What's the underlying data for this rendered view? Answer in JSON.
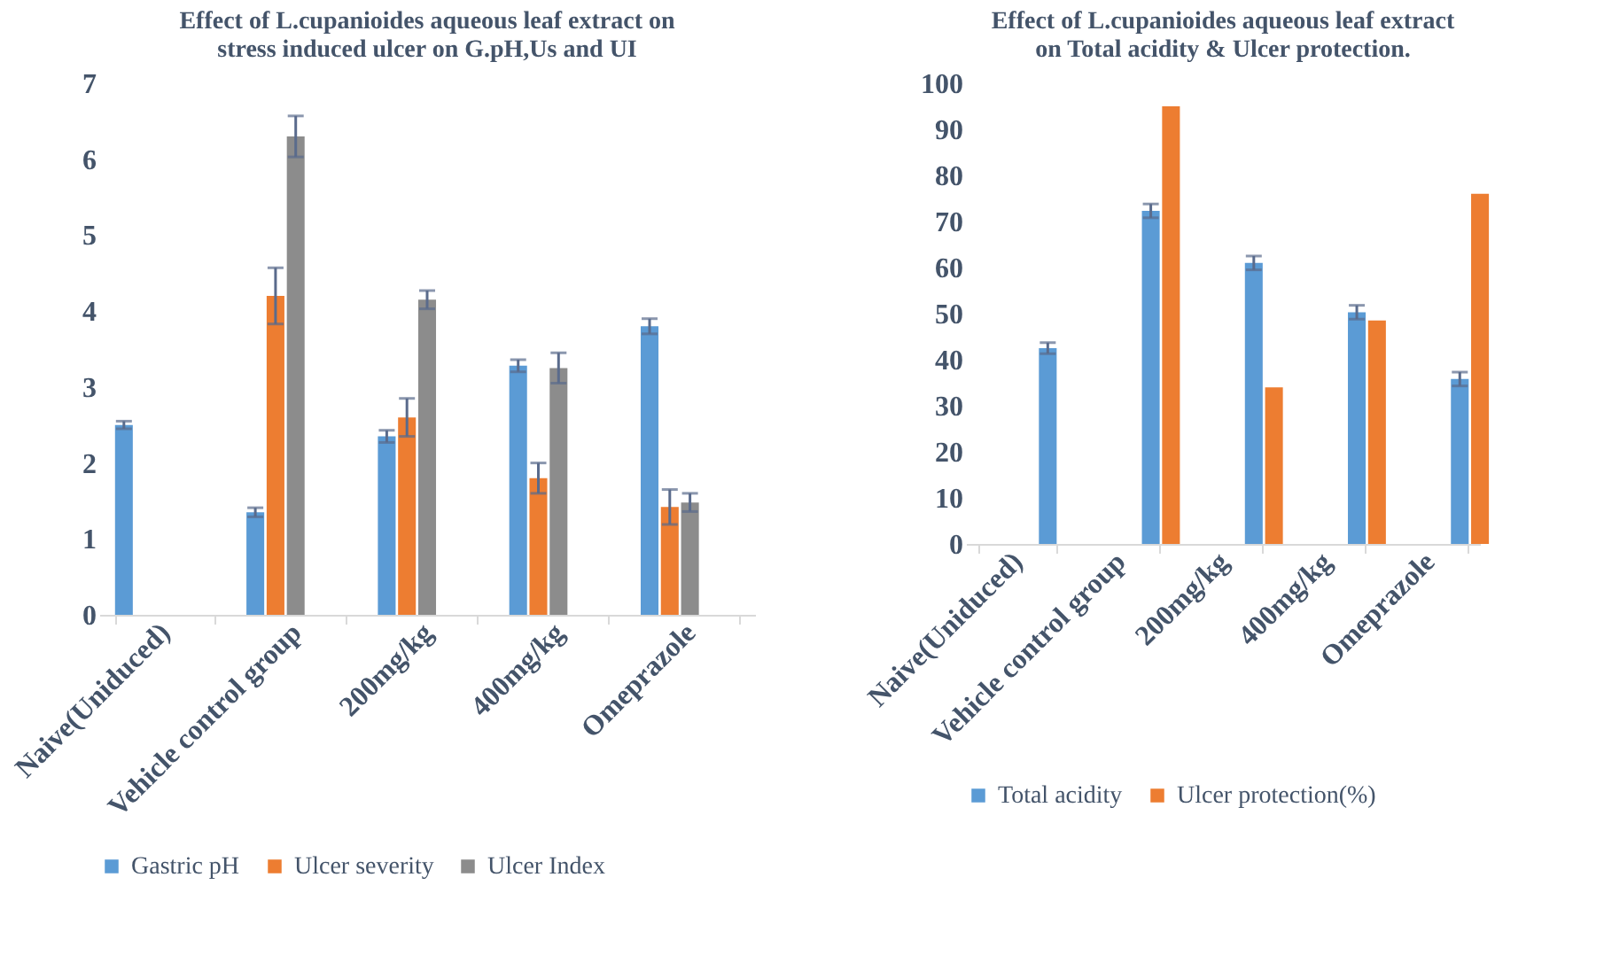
{
  "chart_data": [
    {
      "type": "bar",
      "title": [
        "Effect of L.cupanioides aqueous leaf extract on",
        "stress induced ulcer on G.pH,Us and UI"
      ],
      "categories": [
        "Naive(Uniduced)",
        "Vehicle control group",
        "200mg/kg",
        "400mg/kg",
        "Omeprazole"
      ],
      "series": [
        {
          "name": "Gastric pH",
          "color": "#5b9bd5",
          "values": [
            2.5,
            1.35,
            2.35,
            3.28,
            3.8
          ],
          "errors": [
            0.05,
            0.06,
            0.08,
            0.08,
            0.1
          ]
        },
        {
          "name": "Ulcer severity",
          "color": "#ed7d31",
          "values": [
            null,
            4.2,
            2.6,
            1.8,
            1.42
          ],
          "errors": [
            null,
            0.37,
            0.25,
            0.2,
            0.23
          ]
        },
        {
          "name": "Ulcer Index",
          "color": "#8c8c8c",
          "values": [
            null,
            6.3,
            4.15,
            3.25,
            1.48
          ],
          "errors": [
            null,
            0.27,
            0.12,
            0.2,
            0.12
          ]
        }
      ],
      "ylim": [
        0,
        7
      ],
      "yticks": [
        0,
        1,
        2,
        3,
        4,
        5,
        6,
        7
      ],
      "grid": false,
      "legend": "bottom"
    },
    {
      "type": "bar",
      "title": [
        "Effect of L.cupanioides aqueous leaf extract",
        "on Total acidity & Ulcer protection."
      ],
      "categories": [
        "Naive(Uniduced)",
        "Vehicle control group",
        "200mg/kg",
        "400mg/kg",
        "Omeprazole"
      ],
      "series": [
        {
          "name": "Total acidity",
          "color": "#5b9bd5",
          "values": [
            42.5,
            72.3,
            61,
            50.3,
            35.8
          ],
          "errors": [
            1.2,
            1.5,
            1.5,
            1.5,
            1.5
          ]
        },
        {
          "name": "Ulcer protection(%)",
          "color": "#ed7d31",
          "values": [
            null,
            95,
            34,
            48.5,
            76
          ]
        }
      ],
      "ylim": [
        0,
        100
      ],
      "yticks": [
        0,
        10,
        20,
        30,
        40,
        50,
        60,
        70,
        80,
        90,
        100
      ],
      "grid": false,
      "legend": "bottom"
    }
  ]
}
